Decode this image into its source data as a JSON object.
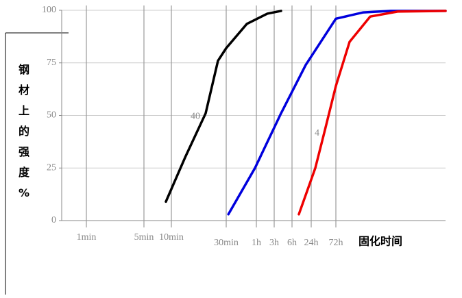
{
  "chart_data": {
    "type": "line",
    "x_label": "固化时间",
    "y_label": "钢材上的强度%",
    "xlim": [
      0,
      14
    ],
    "xticks": [
      {
        "value": 0.9,
        "label": "1min"
      },
      {
        "value": 3,
        "label": "5min"
      },
      {
        "value": 4,
        "label": "10min"
      },
      {
        "value": 6,
        "label": "30min"
      },
      {
        "value": 7.1,
        "label": "1h"
      },
      {
        "value": 7.75,
        "label": "3h"
      },
      {
        "value": 8.4,
        "label": "6h"
      },
      {
        "value": 9.1,
        "label": "24h"
      },
      {
        "value": 10,
        "label": "72h"
      }
    ],
    "ylim": [
      0,
      100
    ],
    "yticks": [
      0,
      25,
      50,
      75,
      100
    ],
    "grid": true,
    "series": [
      {
        "color": "#000000",
        "label": "40",
        "x": [
          3.8,
          4.5,
          5.25,
          5.7,
          6,
          6.75,
          7.5,
          8
        ],
        "values": [
          9,
          30,
          51,
          76,
          82,
          93.5,
          98.4,
          99.7
        ]
      },
      {
        "color": "#0000dd",
        "x": [
          6.08,
          7.05,
          8,
          8.9,
          10,
          11,
          12,
          14
        ],
        "values": [
          3,
          25,
          51,
          74,
          96,
          99,
          99.7,
          99.7
        ]
      },
      {
        "color": "#ee0000",
        "label": "4",
        "x": [
          8.65,
          9.25,
          9.6,
          10,
          10.5,
          11.25,
          12.25,
          14
        ],
        "values": [
          3,
          25,
          43,
          64,
          85,
          97,
          99.4,
          99.7
        ]
      }
    ]
  }
}
